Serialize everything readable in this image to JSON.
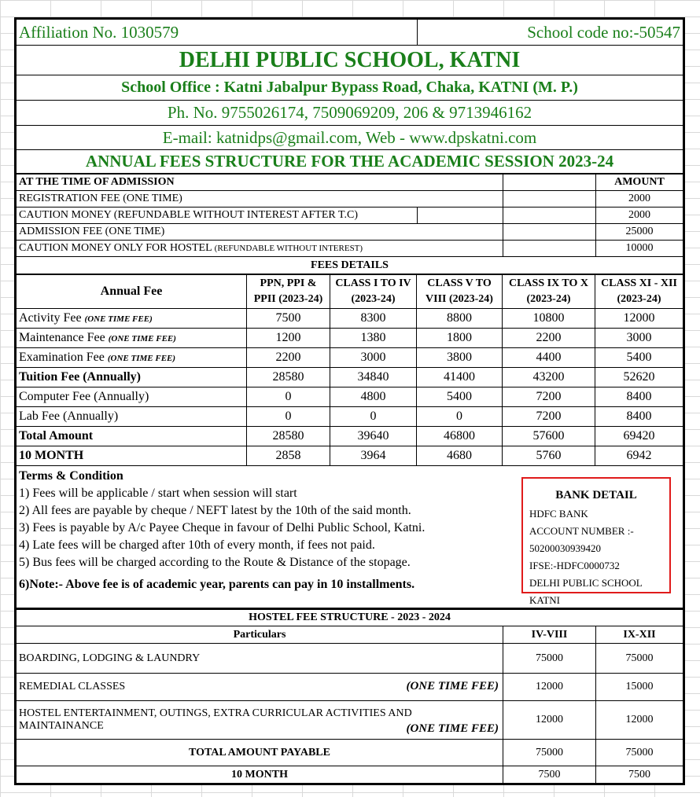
{
  "header": {
    "affiliation": "Affiliation No. 1030579",
    "school_code": "School code no:-50547",
    "school_name": "DELHI PUBLIC SCHOOL, KATNI",
    "office": "School Office : Katni Jabalpur Bypass Road, Chaka, KATNI (M. P.)",
    "phone": "Ph. No. 9755026174, 7509069209, 206 & 9713946162",
    "email_web": "E-mail: katnidps@gmail.com, Web - www.dpskatni.com",
    "title": "ANNUAL FEES STRUCTURE FOR THE ACADEMIC SESSION 2023-24"
  },
  "admission": {
    "heading": "AT THE TIME OF ADMISSION",
    "amount_heading": "AMOUNT",
    "rows": [
      {
        "label": "REGISTRATION FEE (ONE TIME)",
        "note": "",
        "amount": "2000"
      },
      {
        "label": "CAUTION MONEY (REFUNDABLE WITHOUT INTEREST AFTER T.C)",
        "note": "",
        "amount": "2000"
      },
      {
        "label": "ADMISSION FEE (ONE TIME)",
        "note": "",
        "amount": "25000"
      },
      {
        "label": "CAUTION MONEY ONLY FOR HOSTEL",
        "note": "(REFUNDABLE WITHOUT INTEREST)",
        "amount": "10000"
      }
    ]
  },
  "fees": {
    "heading": "FEES DETAILS",
    "columns": [
      "Annual Fee",
      "PPN, PPI & PPII (2023-24)",
      "CLASS  I TO IV (2023-24)",
      "CLASS V TO VIII (2023-24)",
      "CLASS IX TO X (2023-24)",
      "CLASS XI - XII (2023-24)"
    ],
    "rows": [
      {
        "label": "Activity Fee",
        "note": "(ONE TIME FEE)",
        "bold": false,
        "values": [
          "7500",
          "8300",
          "8800",
          "10800",
          "12000"
        ]
      },
      {
        "label": "Maintenance Fee",
        "note": "(ONE TIME FEE)",
        "bold": false,
        "values": [
          "1200",
          "1380",
          "1800",
          "2200",
          "3000"
        ]
      },
      {
        "label": "Examination Fee",
        "note": "(ONE TIME FEE)",
        "bold": false,
        "values": [
          "2200",
          "3000",
          "3800",
          "4400",
          "5400"
        ]
      },
      {
        "label": "Tuition Fee (Annually)",
        "note": "",
        "bold": true,
        "values": [
          "28580",
          "34840",
          "41400",
          "43200",
          "52620"
        ]
      },
      {
        "label": "Computer Fee (Annually)",
        "note": "",
        "bold": false,
        "values": [
          "0",
          "4800",
          "5400",
          "7200",
          "8400"
        ]
      },
      {
        "label": "Lab Fee (Annually)",
        "note": "",
        "bold": false,
        "values": [
          "0",
          "0",
          "0",
          "7200",
          "8400"
        ]
      },
      {
        "label": "Total Amount",
        "note": "",
        "bold": true,
        "values": [
          "28580",
          "39640",
          "46800",
          "57600",
          "69420"
        ]
      },
      {
        "label": "10 MONTH",
        "note": "",
        "bold": true,
        "values": [
          "2858",
          "3964",
          "4680",
          "5760",
          "6942"
        ]
      }
    ]
  },
  "terms": {
    "heading": "Terms & Condition",
    "items": [
      "1) Fees will be applicable / start when session will start",
      "2) All fees are payable by cheque / NEFT latest by the 10th of the said month.",
      "3) Fees is payable by A/c Payee Cheque in favour of Delhi Public School, Katni.",
      "4) Late fees will be charged after 10th of every month, if fees not paid.",
      "5) Bus fees will be charged according to the Route & Distance of the stopage."
    ],
    "note": "6)Note:- Above fee is of academic year, parents can pay in 10 installments."
  },
  "bank": {
    "heading": "BANK  DETAIL",
    "lines": [
      "HDFC BANK",
      "ACCOUNT NUMBER :-",
      "50200030939420",
      "IFSE:-HDFC0000732",
      "DELHI PUBLIC SCHOOL",
      "KATNI"
    ],
    "border_color": "#e01b1b"
  },
  "hostel": {
    "heading": "HOSTEL FEE STRUCTURE - 2023 - 2024",
    "columns": [
      "Particulars",
      "IV-VIII",
      "IX-XII"
    ],
    "rows": [
      {
        "label": "BOARDING, LODGING & LAUNDRY",
        "label2": "",
        "note": "",
        "values": [
          "75000",
          "75000"
        ]
      },
      {
        "label": "REMEDIAL CLASSES",
        "label2": "",
        "note": "(ONE TIME FEE)",
        "values": [
          "12000",
          "15000"
        ]
      },
      {
        "label": "HOSTEL ENTERTAINMENT, OUTINGS, EXTRA CURRICULAR ACTIVITIES AND",
        "label2": "MAINTAINANCE",
        "note": "(ONE TIME FEE)",
        "values": [
          "12000",
          "12000"
        ]
      }
    ],
    "total_label": "TOTAL AMOUNT PAYABLE",
    "total": [
      "75000",
      "75000"
    ],
    "month_label": "10 MONTH",
    "month": [
      "7500",
      "7500"
    ]
  },
  "colors": {
    "title_green": "#1a7f1a"
  }
}
